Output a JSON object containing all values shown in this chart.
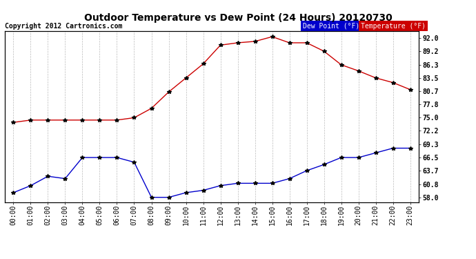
{
  "title": "Outdoor Temperature vs Dew Point (24 Hours) 20120730",
  "copyright_text": "Copyright 2012 Cartronics.com",
  "x_labels": [
    "00:00",
    "01:00",
    "02:00",
    "03:00",
    "04:00",
    "05:00",
    "06:00",
    "07:00",
    "08:00",
    "09:00",
    "10:00",
    "11:00",
    "12:00",
    "13:00",
    "14:00",
    "15:00",
    "16:00",
    "17:00",
    "18:00",
    "19:00",
    "20:00",
    "21:00",
    "22:00",
    "23:00"
  ],
  "temperature": [
    74.0,
    74.5,
    74.5,
    74.5,
    74.5,
    74.5,
    74.5,
    75.0,
    77.0,
    80.5,
    83.5,
    86.5,
    90.5,
    91.0,
    91.3,
    92.3,
    91.0,
    91.0,
    89.2,
    86.3,
    85.0,
    83.5,
    82.5,
    81.0
  ],
  "dew_point": [
    59.0,
    60.5,
    62.5,
    62.0,
    66.5,
    66.5,
    66.5,
    65.5,
    58.0,
    58.0,
    59.0,
    59.5,
    60.5,
    61.0,
    61.0,
    61.0,
    62.0,
    63.7,
    65.0,
    66.5,
    66.5,
    67.5,
    68.5,
    68.5
  ],
  "temp_color": "#cc0000",
  "dew_color": "#0000cc",
  "marker_color": "#000000",
  "ylim": [
    57.0,
    93.5
  ],
  "y_ticks_right": [
    92.0,
    89.2,
    86.3,
    83.5,
    80.7,
    77.8,
    75.0,
    72.2,
    69.3,
    66.5,
    63.7,
    60.8,
    58.0
  ],
  "background_color": "#ffffff",
  "grid_color": "#bbbbbb",
  "legend_dew_bg": "#0000cc",
  "legend_temp_bg": "#cc0000",
  "legend_text_color": "#ffffff",
  "title_fontsize": 10,
  "copyright_fontsize": 7,
  "tick_fontsize": 7,
  "legend_fontsize": 7
}
